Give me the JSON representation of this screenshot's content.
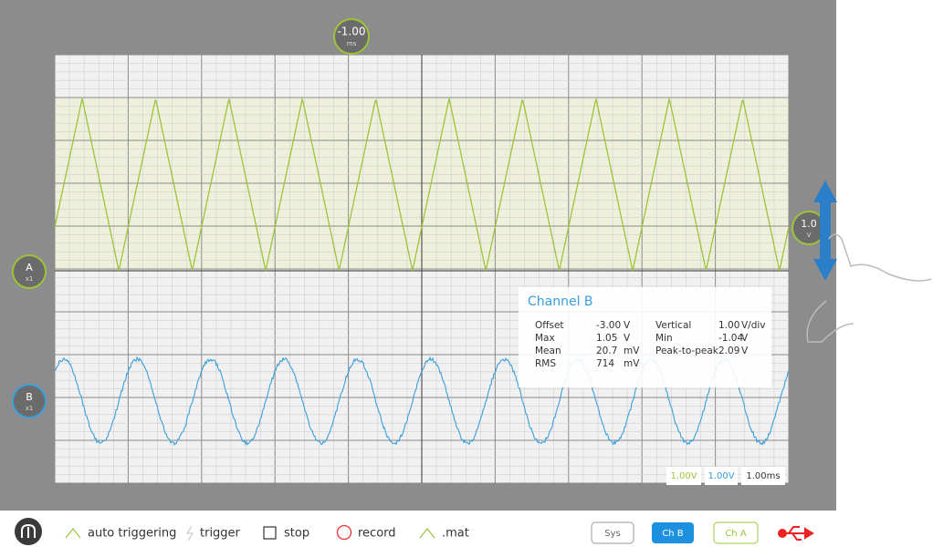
{
  "time_marker": {
    "value": "-1.00",
    "unit": "ms"
  },
  "channels": [
    {
      "label": "A",
      "scale": "x1"
    },
    {
      "label": "B",
      "scale": "x1"
    }
  ],
  "offset_marker": {
    "value": "1.0",
    "unit": "V"
  },
  "info_panel": {
    "title": "Channel B",
    "rows": [
      [
        "Offset",
        "-3.00",
        "V",
        "Vertical",
        "1.00",
        "V/div"
      ],
      [
        "Max",
        "1.05",
        "V",
        "Min",
        "-1.04",
        "V"
      ],
      [
        "Mean",
        "20.7",
        "mV",
        "Peak-to-peak",
        "2.09",
        "V"
      ],
      [
        "RMS",
        "714",
        "mV"
      ]
    ]
  },
  "scale_badges": [
    "1.00V",
    "1.00V",
    "1.00ms"
  ],
  "toolbar": {
    "items": [
      "auto triggering",
      "trigger",
      "stop",
      "record",
      ".mat"
    ],
    "buttons": [
      "Sys",
      "Ch B",
      "Ch A"
    ]
  }
}
